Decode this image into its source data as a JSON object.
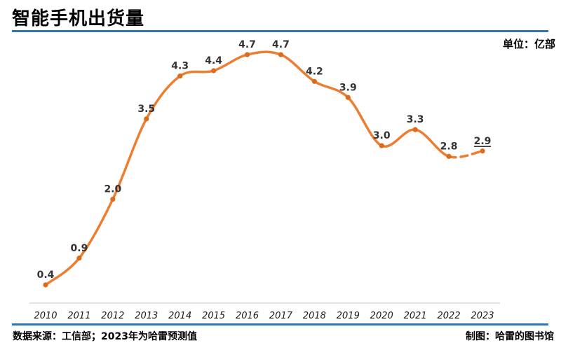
{
  "title": "智能手机出货量",
  "unit_label": "单位：亿部",
  "footer": {
    "source": "数据来源：工信部；2023年为哈雷预测值",
    "credit": "制图：哈雷的图书馆"
  },
  "colors": {
    "accent_blue": "#2E75B6",
    "line_orange": "#ED7D31",
    "marker_orange": "#DD6B1A",
    "axis_line_gray": "#D9D9D9",
    "data_label_text": "#333333",
    "year_label_text": "#1a1a1a"
  },
  "chart_data": {
    "type": "line",
    "title": "智能手机出货量",
    "unit": "亿部",
    "categories": [
      "2010",
      "2011",
      "2012",
      "2013",
      "2014",
      "2015",
      "2016",
      "2017",
      "2018",
      "2019",
      "2020",
      "2021",
      "2022",
      "2023"
    ],
    "values": [
      0.4,
      0.9,
      2.0,
      3.5,
      4.3,
      4.4,
      4.7,
      4.7,
      4.2,
      3.9,
      3.0,
      3.3,
      2.8,
      2.9
    ],
    "ylim": [
      0,
      5
    ],
    "grid": false,
    "legend": false,
    "smooth": true,
    "dashed_segment_start_index": 12,
    "forecast_point_index": 13,
    "forecast_note": "2023 value underlined; final segment dashed (forecast)"
  }
}
